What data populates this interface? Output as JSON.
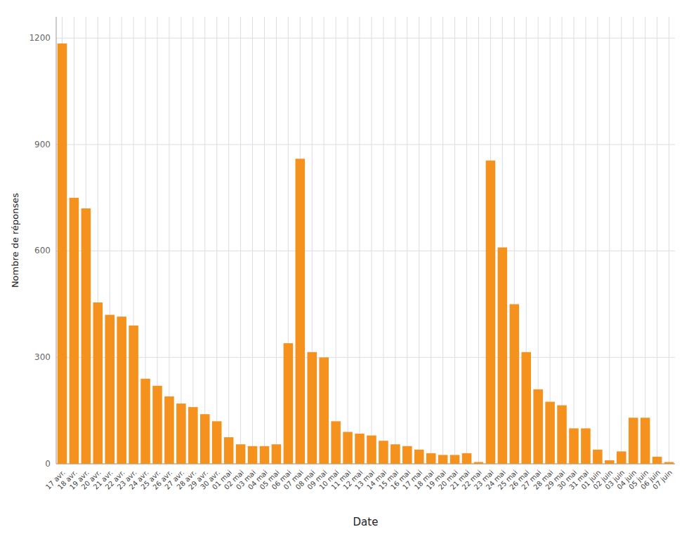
{
  "chart_data": {
    "type": "bar",
    "categories": [
      "17 avr.",
      "18 avr.",
      "19 avr.",
      "20 avr.",
      "21 avr.",
      "22 avr.",
      "23 avr.",
      "24 avr.",
      "25 avr.",
      "26 avr.",
      "27 avr.",
      "28 avr.",
      "29 avr.",
      "30 avr.",
      "01 mai",
      "02 mai",
      "03 mai",
      "04 mai",
      "05 mai",
      "06 mai",
      "07 mai",
      "08 mai",
      "09 mai",
      "10 mai",
      "11 mai",
      "12 mai",
      "13 mai",
      "14 mai",
      "15 mai",
      "16 mai",
      "17 mai",
      "18 mai",
      "19 mai",
      "20 mai",
      "21 mai",
      "22 mai",
      "23 mai",
      "24 mai",
      "25 mai",
      "26 mai",
      "27 mai",
      "28 mai",
      "29 mai",
      "30 mai",
      "31 mai",
      "01 juin",
      "02 juin",
      "03 juin",
      "04 juin",
      "05 juin",
      "06 juin",
      "07 juin"
    ],
    "values": [
      1185,
      750,
      720,
      455,
      420,
      415,
      390,
      240,
      220,
      190,
      170,
      160,
      140,
      120,
      75,
      55,
      50,
      50,
      55,
      340,
      860,
      315,
      300,
      120,
      90,
      85,
      80,
      65,
      55,
      50,
      40,
      30,
      25,
      25,
      30,
      5,
      855,
      610,
      450,
      315,
      210,
      175,
      165,
      100,
      100,
      40,
      10,
      35,
      130,
      130,
      20,
      5
    ],
    "color": "#F5921E",
    "xlabel": "Date",
    "ylabel": "Nombre de réponses",
    "ylim": [
      0,
      1260
    ],
    "yticks": [
      0,
      300,
      600,
      900,
      1200
    ],
    "grid": true
  }
}
